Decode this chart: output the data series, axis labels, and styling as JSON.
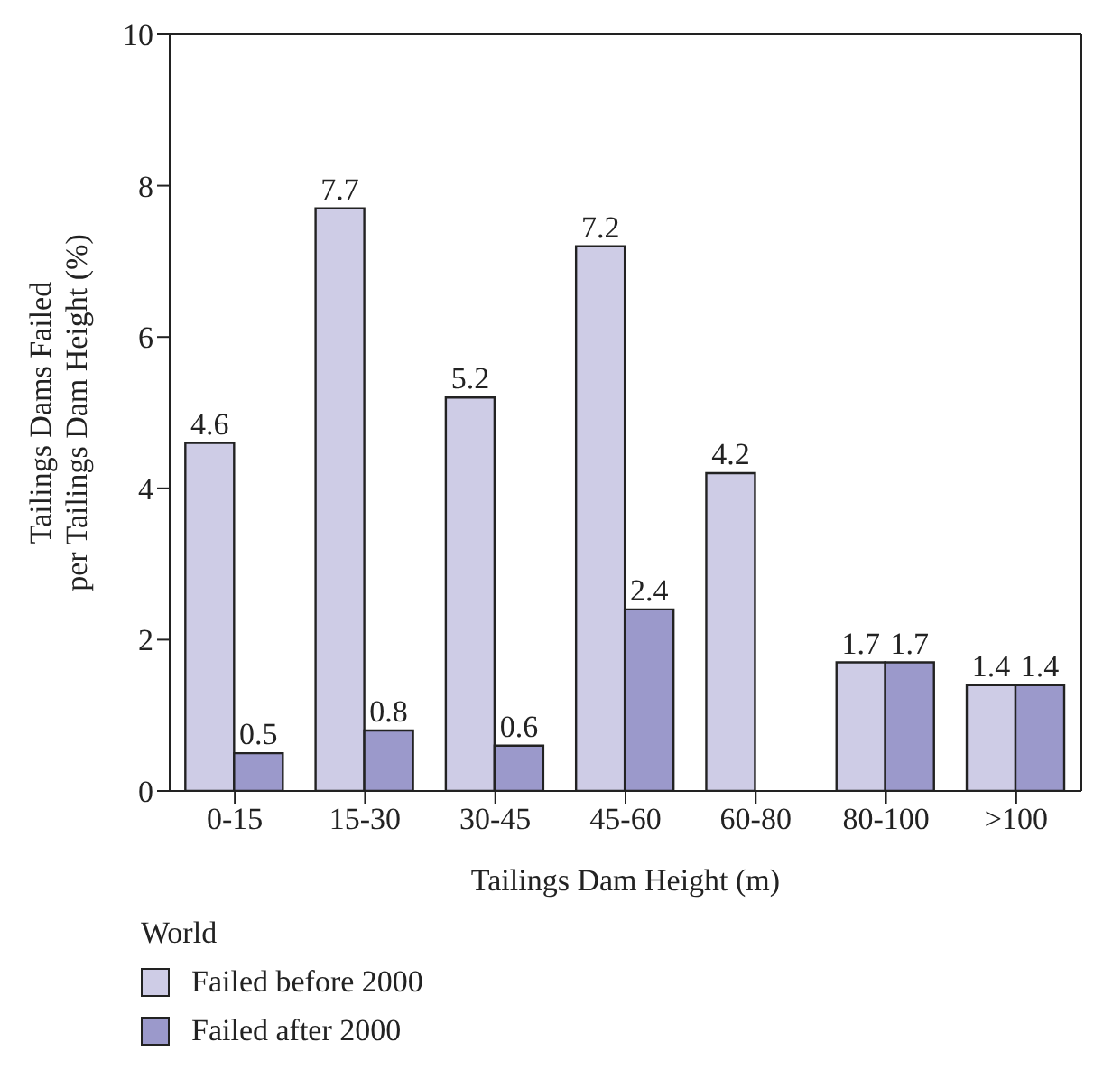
{
  "chart_data": {
    "type": "bar",
    "xlabel": "Tailings Dam Height (m)",
    "ylabel": "Tailings Dams Failed\nper Tailings Dam Height (%)",
    "legend_title": "World",
    "categories": [
      "0-15",
      "15-30",
      "30-45",
      "45-60",
      "60-80",
      "80-100",
      ">100"
    ],
    "series": [
      {
        "name": "Failed before 2000",
        "color": "#cecce6",
        "values": [
          4.6,
          7.7,
          5.2,
          7.2,
          4.2,
          1.7,
          1.4
        ]
      },
      {
        "name": "Failed after 2000",
        "color": "#9b99cb",
        "values": [
          0.5,
          0.8,
          0.6,
          2.4,
          null,
          1.7,
          1.4
        ]
      }
    ],
    "ylim": [
      0,
      10
    ],
    "yticks": [
      0,
      2,
      4,
      6,
      8,
      10
    ],
    "data_labels": true,
    "legend": "bottom"
  }
}
